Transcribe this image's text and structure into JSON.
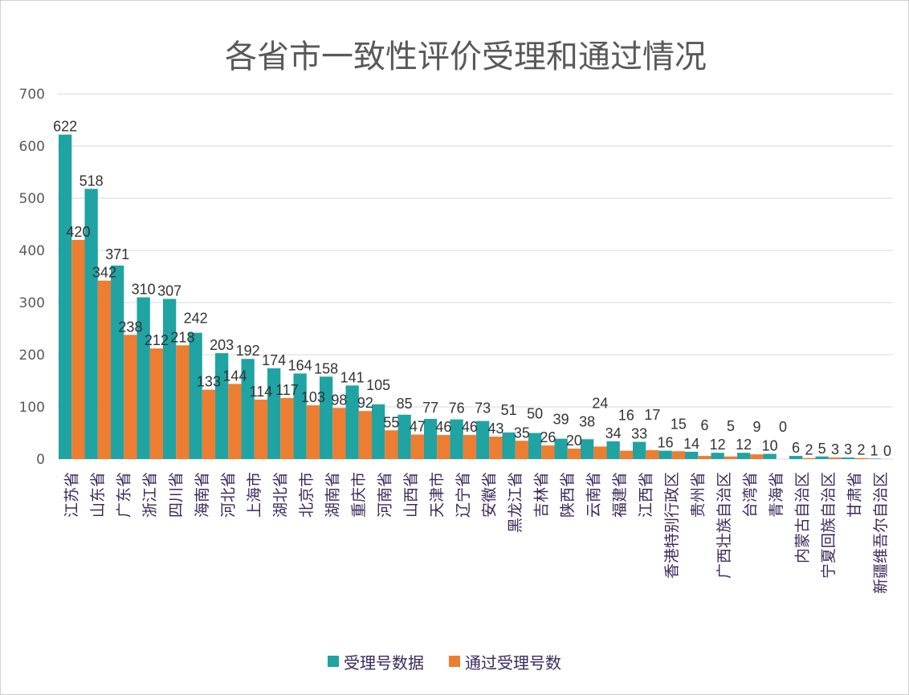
{
  "chart_data": {
    "type": "bar",
    "title": "各省市一致性评价受理和通过情况",
    "xlabel": "",
    "ylabel": "",
    "ylim": [
      0,
      700
    ],
    "yticks": [
      0,
      100,
      200,
      300,
      400,
      500,
      600,
      700
    ],
    "grid": true,
    "legend_position": "bottom",
    "categories": [
      "江苏省",
      "山东省",
      "广东省",
      "浙江省",
      "四川省",
      "海南省",
      "河北省",
      "上海市",
      "湖北省",
      "北京市",
      "湖南省",
      "重庆市",
      "河南省",
      "山西省",
      "天津市",
      "辽宁省",
      "安徽省",
      "黑龙江省",
      "吉林省",
      "陕西省",
      "云南省",
      "福建省",
      "江西省",
      "香港特别行政区",
      "贵州省",
      "广西壮族自治区",
      "台湾省",
      "青海省",
      "内蒙古自治区",
      "宁夏回族自治区",
      "甘肃省",
      "新疆维吾尔自治区"
    ],
    "series": [
      {
        "name": "受理号数据",
        "color": "#1fa3a3",
        "values": [
          622,
          518,
          371,
          310,
          307,
          242,
          203,
          192,
          174,
          164,
          158,
          141,
          105,
          85,
          77,
          76,
          73,
          51,
          50,
          39,
          38,
          34,
          33,
          16,
          14,
          12,
          12,
          10,
          6,
          5,
          3,
          1
        ]
      },
      {
        "name": "通过受理号数",
        "color": "#ed7d31",
        "values": [
          420,
          342,
          238,
          212,
          218,
          133,
          144,
          114,
          117,
          103,
          98,
          92,
          55,
          47,
          46,
          46,
          43,
          35,
          26,
          20,
          24,
          16,
          17,
          15,
          6,
          5,
          9,
          0,
          2,
          3,
          2,
          0
        ]
      }
    ]
  }
}
